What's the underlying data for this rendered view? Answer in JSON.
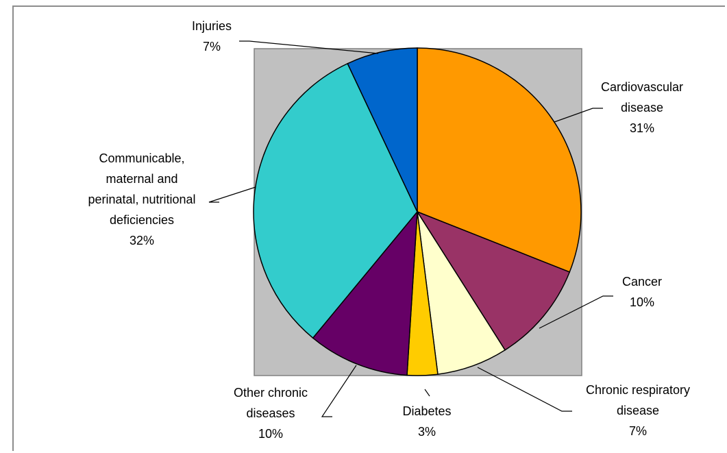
{
  "chart_data": {
    "type": "pie",
    "plot_area_fill": "#c0c0c0",
    "start": "top",
    "direction": "clockwise",
    "slices": [
      {
        "label": [
          "Cardiovascular",
          "disease"
        ],
        "value": 31,
        "value_label": "31%",
        "color": "#ff9900"
      },
      {
        "label": [
          "Cancer"
        ],
        "value": 10,
        "value_label": "10%",
        "color": "#993366"
      },
      {
        "label": [
          "Chronic respiratory",
          "disease"
        ],
        "value": 7,
        "value_label": "7%",
        "color": "#ffffcc"
      },
      {
        "label": [
          "Diabetes"
        ],
        "value": 3,
        "value_label": "3%",
        "color": "#ffcc00"
      },
      {
        "label": [
          "Other chronic",
          "diseases"
        ],
        "value": 10,
        "value_label": "10%",
        "color": "#660066"
      },
      {
        "label": [
          "Communicable,",
          "maternal and",
          "perinatal, nutritional",
          "deficiencies"
        ],
        "value": 32,
        "value_label": "32%",
        "color": "#33cccc"
      },
      {
        "label": [
          "Injuries"
        ],
        "value": 7,
        "value_label": "7%",
        "color": "#0066cc"
      }
    ]
  }
}
